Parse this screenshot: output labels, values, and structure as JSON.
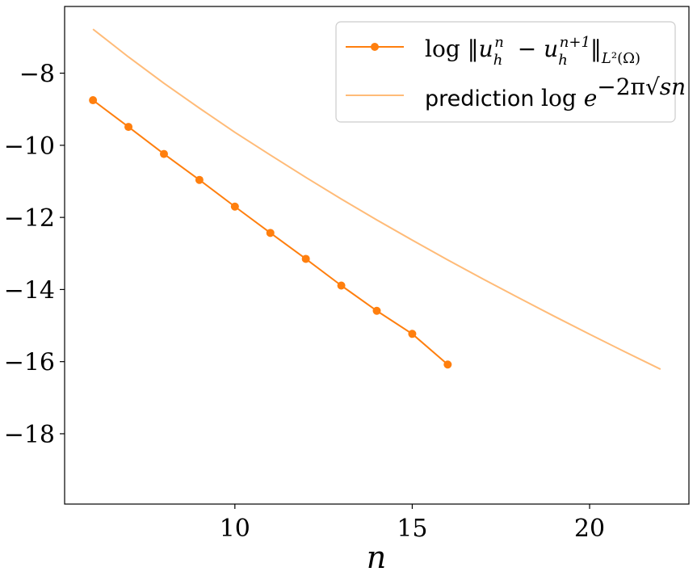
{
  "chart_data": {
    "type": "line",
    "xlabel": "n",
    "ylabel": "",
    "xlim": [
      5.2,
      22.8
    ],
    "ylim": [
      -19.95,
      -6.15
    ],
    "xticks": [
      10,
      15,
      20
    ],
    "xtick_labels": [
      "10",
      "15",
      "20"
    ],
    "yticks": [
      -8,
      -10,
      -12,
      -14,
      -16,
      -18
    ],
    "ytick_labels": [
      "−8",
      "−10",
      "−12",
      "−14",
      "−16",
      "−18"
    ],
    "grid": false,
    "legend_position": "upper right",
    "series": [
      {
        "name": "log ‖uₕⁿ − uₕⁿ⁺¹‖_L²(Ω)",
        "color": "#ff7f0e",
        "marker": "circle",
        "x": [
          6,
          7,
          8,
          9,
          10,
          11,
          12,
          13,
          14,
          15,
          16
        ],
        "y": [
          -8.75,
          -9.49,
          -10.24,
          -10.96,
          -11.7,
          -12.43,
          -13.15,
          -13.89,
          -14.59,
          -15.23,
          -16.08
        ]
      },
      {
        "name": "prediction log e^(−2π√(sn))",
        "color": "#ffbb78",
        "marker": "none",
        "x": [
          6,
          7,
          8,
          9,
          10,
          11,
          12,
          13,
          14,
          15,
          16,
          17,
          18,
          19,
          20,
          21,
          22
        ],
        "y": [
          -6.78,
          -7.55,
          -8.28,
          -8.97,
          -9.64,
          -10.27,
          -10.89,
          -11.49,
          -12.07,
          -12.63,
          -13.18,
          -13.71,
          -14.23,
          -14.74,
          -15.24,
          -15.73,
          -16.21
        ]
      }
    ]
  }
}
